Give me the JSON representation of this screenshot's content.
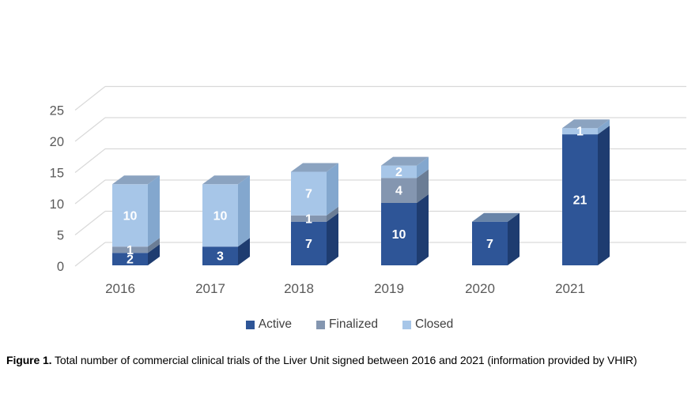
{
  "chart_data": {
    "type": "bar",
    "stacked": true,
    "effect": "3d",
    "title": "",
    "xlabel": "",
    "ylabel": "",
    "categories": [
      "2016",
      "2017",
      "2018",
      "2019",
      "2020",
      "2021"
    ],
    "series": [
      {
        "name": "Active",
        "color": "#2E5597",
        "side_color": "#1E3C70",
        "top_color": "#6884A8",
        "values": [
          2,
          3,
          7,
          10,
          7,
          21
        ]
      },
      {
        "name": "Finalized",
        "color": "#8496B0",
        "side_color": "#6B7D95",
        "top_color": "#9FAFC5",
        "values": [
          1,
          0,
          1,
          4,
          0,
          0
        ]
      },
      {
        "name": "Closed",
        "color": "#A7C6E8",
        "side_color": "#83A7CE",
        "top_color": "#8BA3C0",
        "values": [
          10,
          10,
          7,
          2,
          0,
          1
        ]
      }
    ],
    "totals": [
      13,
      13,
      15,
      16,
      7,
      22
    ],
    "y_ticks": [
      0,
      5,
      10,
      15,
      20,
      25
    ],
    "ylim": [
      0,
      25
    ],
    "grid": true,
    "gridline_color": "#D9D9D9",
    "axis_label_color": "#595959",
    "value_label_color": "#FFFFFF",
    "legend_position": "bottom"
  },
  "caption": {
    "prefix": "Figure 1.",
    "text": " Total number of commercial clinical trials of the Liver Unit signed between 2016 and 2021 (information provided by VHIR)"
  }
}
